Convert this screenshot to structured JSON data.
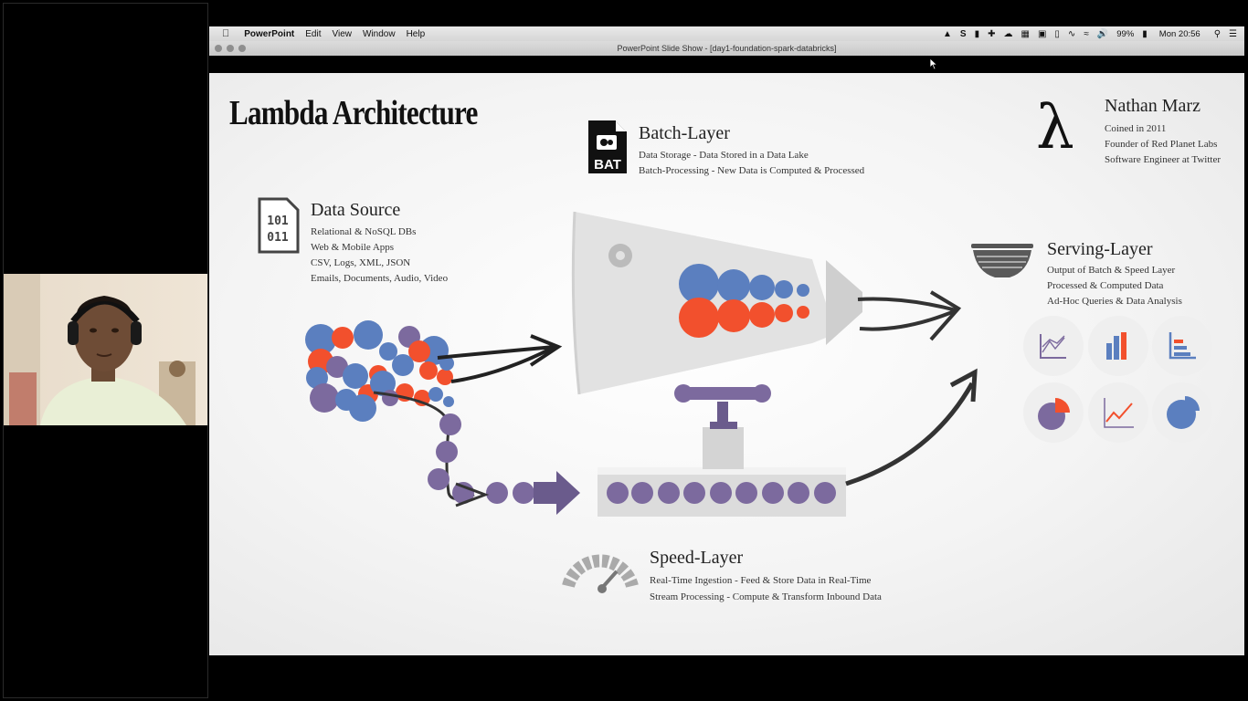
{
  "menubar": {
    "apple": "",
    "app": "PowerPoint",
    "items": [
      "Edit",
      "View",
      "Window",
      "Help"
    ],
    "battery": "99%",
    "clock": "Mon 20:56"
  },
  "window": {
    "title": "PowerPoint Slide Show - [day1-foundation-spark-databricks]"
  },
  "slide": {
    "title": "Lambda Architecture",
    "batch": {
      "icon_text": "BAT",
      "heading": "Batch-Layer",
      "lines": [
        "Data Storage - Data Stored in a Data Lake",
        "Batch-Processing - New Data is Computed & Processed"
      ]
    },
    "author": {
      "symbol": "λ",
      "name": "Nathan Marz",
      "lines": [
        "Coined in 2011",
        "Founder of Red Planet Labs",
        "Software Engineer at Twitter"
      ]
    },
    "source": {
      "icon_text_1": "101",
      "icon_text_2": "011",
      "heading": "Data Source",
      "lines": [
        "Relational & NoSQL DBs",
        "Web & Mobile Apps",
        "CSV, Logs, XML, JSON",
        "Emails, Documents, Audio, Video"
      ]
    },
    "serving": {
      "heading": "Serving-Layer",
      "lines": [
        "Output of Batch & Speed Layer",
        "Processed & Computed Data",
        "Ad-Hoc Queries & Data Analysis"
      ],
      "icons": [
        "line-chart-icon",
        "bar-chart-icon",
        "sorted-bars-icon",
        "pie-chart-icon",
        "trend-chart-icon",
        "pie-slice-icon"
      ]
    },
    "speed": {
      "heading": "Speed-Layer",
      "lines": [
        "Real-Time Ingestion - Feed & Store Data in Real-Time",
        "Stream Processing - Compute & Transform Inbound Data"
      ]
    },
    "colors": {
      "blue": "#5b7fbf",
      "red": "#f2502d",
      "purple": "#7c6a9e"
    }
  }
}
